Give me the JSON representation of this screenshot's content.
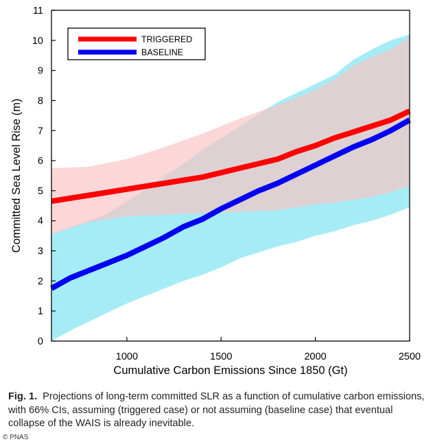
{
  "chart_data": {
    "type": "line",
    "title": "",
    "xlabel": "Cumulative Carbon Emissions Since 1850 (Gt)",
    "ylabel": "Committed Sea Level Rise (m)",
    "xlim": [
      600,
      2500
    ],
    "ylim": [
      0,
      11
    ],
    "xticks": [
      1000,
      1500,
      2000,
      2500
    ],
    "yticks": [
      0,
      1,
      2,
      3,
      4,
      5,
      6,
      7,
      8,
      9,
      10,
      11
    ],
    "grid": false,
    "legend_position": "top-left",
    "series": [
      {
        "name": "TRIGGERED",
        "color": "#ff0000",
        "band_color": "#f9c4c4",
        "x": [
          600,
          800,
          1000,
          1200,
          1400,
          1600,
          1800,
          1900,
          2000,
          2100,
          2200,
          2300,
          2400,
          2500
        ],
        "values": [
          4.65,
          4.85,
          5.05,
          5.25,
          5.45,
          5.75,
          6.05,
          6.3,
          6.5,
          6.75,
          6.95,
          7.15,
          7.35,
          7.65
        ],
        "ci_low": [
          3.55,
          3.95,
          4.15,
          4.2,
          4.25,
          4.3,
          4.35,
          4.45,
          4.55,
          4.6,
          4.7,
          4.8,
          4.95,
          5.15
        ],
        "ci_high": [
          5.75,
          5.8,
          6.05,
          6.45,
          6.9,
          7.4,
          7.85,
          8.1,
          8.35,
          8.7,
          9.15,
          9.45,
          9.7,
          10.1
        ]
      },
      {
        "name": "BASELINE",
        "color": "#0000ee",
        "band_color": "#a6ecf6",
        "x": [
          600,
          700,
          800,
          900,
          1000,
          1100,
          1200,
          1300,
          1400,
          1500,
          1600,
          1700,
          1800,
          1900,
          2000,
          2100,
          2200,
          2300,
          2400,
          2500
        ],
        "values": [
          1.75,
          2.1,
          2.35,
          2.6,
          2.85,
          3.15,
          3.45,
          3.8,
          4.05,
          4.4,
          4.7,
          5.0,
          5.25,
          5.55,
          5.85,
          6.15,
          6.45,
          6.7,
          7.0,
          7.35
        ],
        "ci_low": [
          0.0,
          0.35,
          0.65,
          0.95,
          1.25,
          1.5,
          1.75,
          2.0,
          2.2,
          2.45,
          2.75,
          2.95,
          3.15,
          3.3,
          3.5,
          3.65,
          3.85,
          4.0,
          4.2,
          4.45
        ],
        "ci_high": [
          3.55,
          3.8,
          4.0,
          4.25,
          4.65,
          5.05,
          5.5,
          5.9,
          6.35,
          6.75,
          7.15,
          7.55,
          7.95,
          8.25,
          8.55,
          8.85,
          9.35,
          9.7,
          10.0,
          10.2
        ]
      }
    ]
  },
  "caption": {
    "label": "Fig. 1.",
    "text": "Projections of long-term committed SLR as a function of cumulative carbon emissions, with 66% CIs, assuming (triggered case) or not assuming (baseline case) that eventual collapse of the WAIS is already inevitable."
  },
  "credit": "© PNAS"
}
